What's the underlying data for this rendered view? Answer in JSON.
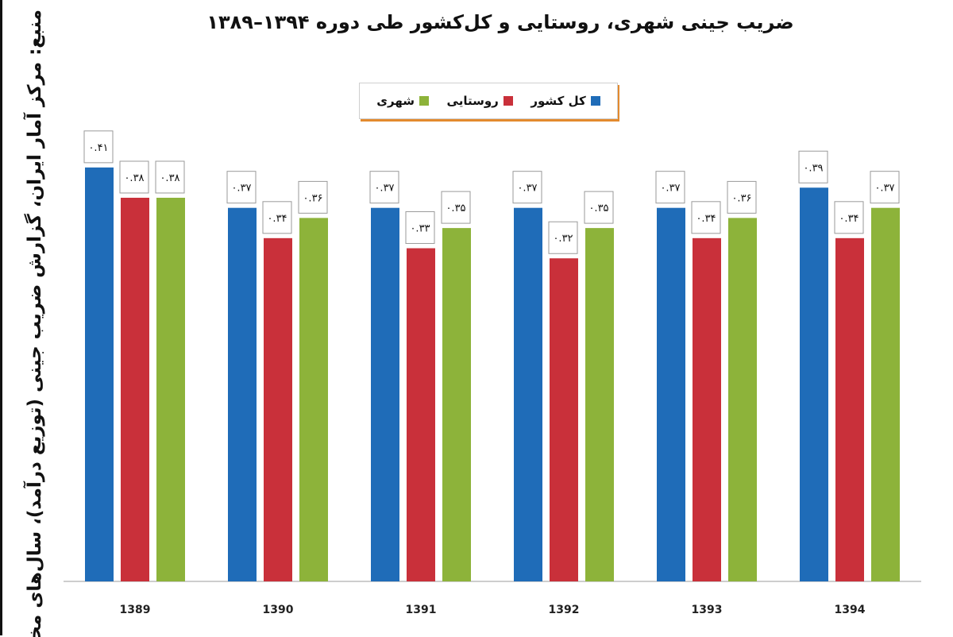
{
  "chart_data": {
    "type": "bar",
    "title": "ضریب جینی شهری، روستایی و کل‌کشور طی دوره ۱۳۹۴–۱۳۸۹",
    "source_note": "منبع: مرکز آمار ایران، گزارش ضریب جینی (توزیع درآمد)، سال‌های مختلف",
    "categories": [
      "1389",
      "1390",
      "1391",
      "1392",
      "1393",
      "1394"
    ],
    "series": [
      {
        "name": "کل کشور",
        "color": "#1f6cb8",
        "values": [
          0.41,
          0.37,
          0.37,
          0.37,
          0.37,
          0.39
        ],
        "value_labels": [
          "۰.۴۱",
          "۰.۳۷",
          "۰.۳۷",
          "۰.۳۷",
          "۰.۳۷",
          "۰.۳۹"
        ]
      },
      {
        "name": "روستایی",
        "color": "#c9303a",
        "values": [
          0.38,
          0.34,
          0.33,
          0.32,
          0.34,
          0.34
        ],
        "value_labels": [
          "۰.۳۸",
          "۰.۳۴",
          "۰.۳۳",
          "۰.۳۲",
          "۰.۳۴",
          "۰.۳۴"
        ]
      },
      {
        "name": "شهری",
        "color": "#8db33a",
        "values": [
          0.38,
          0.36,
          0.35,
          0.35,
          0.36,
          0.37
        ],
        "value_labels": [
          "۰.۳۸",
          "۰.۳۶",
          "۰.۳۵",
          "۰.۳۵",
          "۰.۳۶",
          "۰.۳۷"
        ]
      }
    ],
    "ylim": [
      0,
      0.45
    ],
    "grid": false,
    "legend_position": "top-center"
  }
}
